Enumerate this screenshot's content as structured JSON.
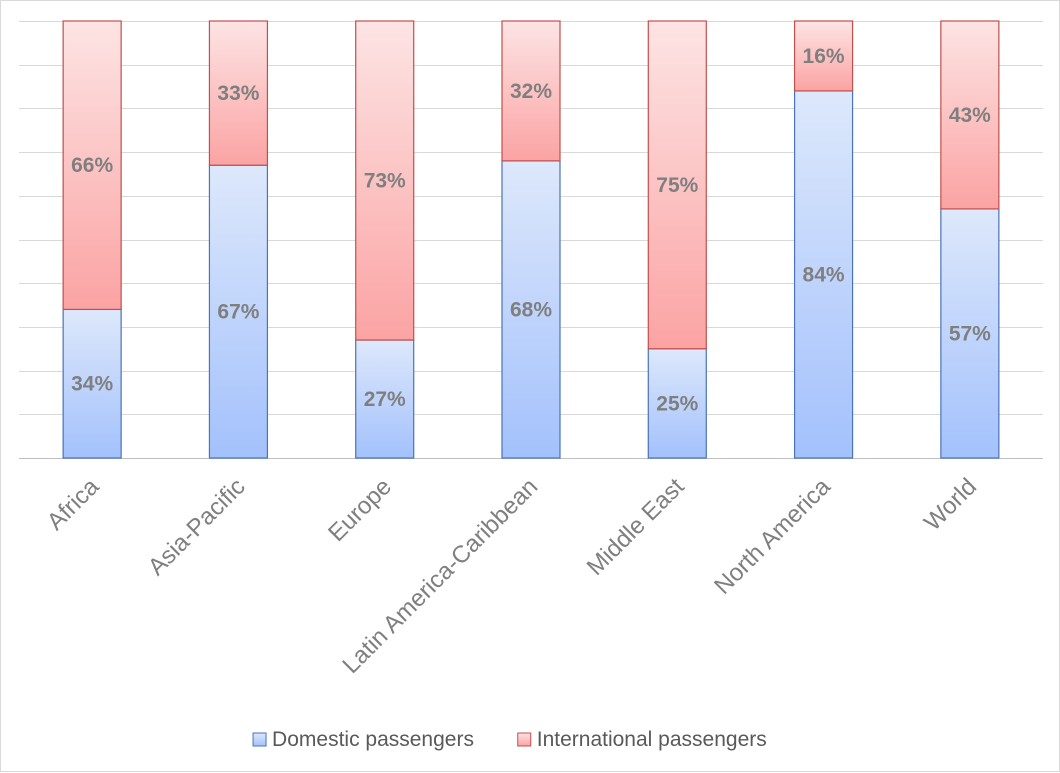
{
  "chart_data": {
    "type": "bar",
    "stacked": true,
    "title": "",
    "xlabel": "",
    "ylabel": "",
    "ylim": [
      0,
      100
    ],
    "grid": true,
    "legend_position": "bottom",
    "categories": [
      "Africa",
      "Asia-Pacific",
      "Europe",
      "Latin America-Caribbean",
      "Middle East",
      "North America",
      "World"
    ],
    "series": [
      {
        "name": "Domestic passengers",
        "values": [
          34,
          67,
          27,
          68,
          25,
          84,
          57
        ],
        "labels": [
          "34%",
          "67%",
          "27%",
          "68%",
          "25%",
          "84%",
          "57%"
        ],
        "color_top": "#dde8fb",
        "color_bottom": "#a3c1fc",
        "stroke": "#4a73b8"
      },
      {
        "name": "International passengers",
        "values": [
          66,
          33,
          73,
          32,
          75,
          16,
          43
        ],
        "labels": [
          "66%",
          "33%",
          "73%",
          "32%",
          "75%",
          "16%",
          "43%"
        ],
        "color_top": "#fde4e4",
        "color_bottom": "#fba3a3",
        "stroke": "#c0504d"
      }
    ]
  }
}
